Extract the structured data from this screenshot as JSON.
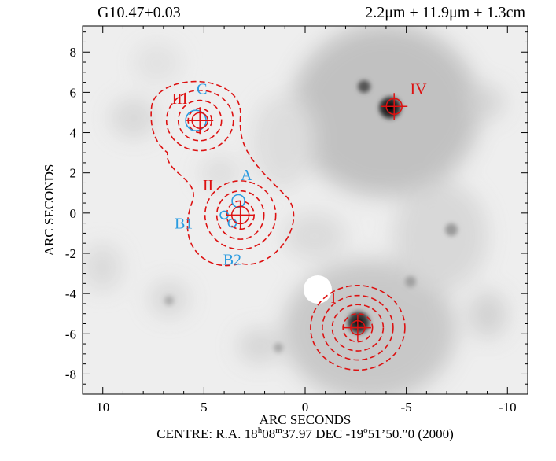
{
  "header": {
    "source_name": "G10.47+0.03",
    "bands": "2.2μm + 11.9μm + 1.3cm"
  },
  "axes": {
    "xlabel": "ARC SECONDS",
    "ylabel": "ARC SECONDS",
    "xlim": [
      11,
      -11
    ],
    "ylim": [
      -9,
      9.3
    ],
    "x_ticks": [
      10,
      5,
      0,
      -5,
      -10
    ],
    "y_ticks": [
      -8,
      -6,
      -4,
      -2,
      0,
      2,
      4,
      6,
      8
    ]
  },
  "footer": {
    "prefix": "CENTRE:  R.A. 18",
    "ra_h_sup": "h",
    "ra_mid": "08",
    "ra_m_sup": "m",
    "ra_sec": "37.97",
    "dec_prefix": "  DEC  -19",
    "dec_deg_sup": "o",
    "dec_rest": "51’50.″0  (2000)"
  },
  "colors": {
    "red": "#dd1111",
    "blue": "#2a9be0",
    "background": "#f0f0f0"
  },
  "sources_red": [
    {
      "label": "I",
      "x": -2.6,
      "y": -5.7,
      "label_x": -1.4,
      "label_y": -4.2
    },
    {
      "label": "II",
      "x": 3.2,
      "y": -0.1,
      "label_x": 4.8,
      "label_y": 1.4
    },
    {
      "label": "III",
      "x": 5.2,
      "y": 4.6,
      "label_x": 6.2,
      "label_y": 5.7
    },
    {
      "label": "IV",
      "x": -4.4,
      "y": 5.3,
      "label_x": -5.6,
      "label_y": 6.2
    }
  ],
  "sources_blue": [
    {
      "label": "A",
      "x": 3.3,
      "y": 0.6,
      "label_x": 2.9,
      "label_y": 1.9
    },
    {
      "label": "B1",
      "x": 4.0,
      "y": -0.1,
      "label_x": 6.0,
      "label_y": -0.5
    },
    {
      "label": "B2",
      "x": 3.6,
      "y": -0.5,
      "label_x": 3.6,
      "label_y": -2.3
    },
    {
      "label": "C",
      "x": 5.4,
      "y": 4.6,
      "label_x": 5.1,
      "label_y": 6.2
    }
  ]
}
